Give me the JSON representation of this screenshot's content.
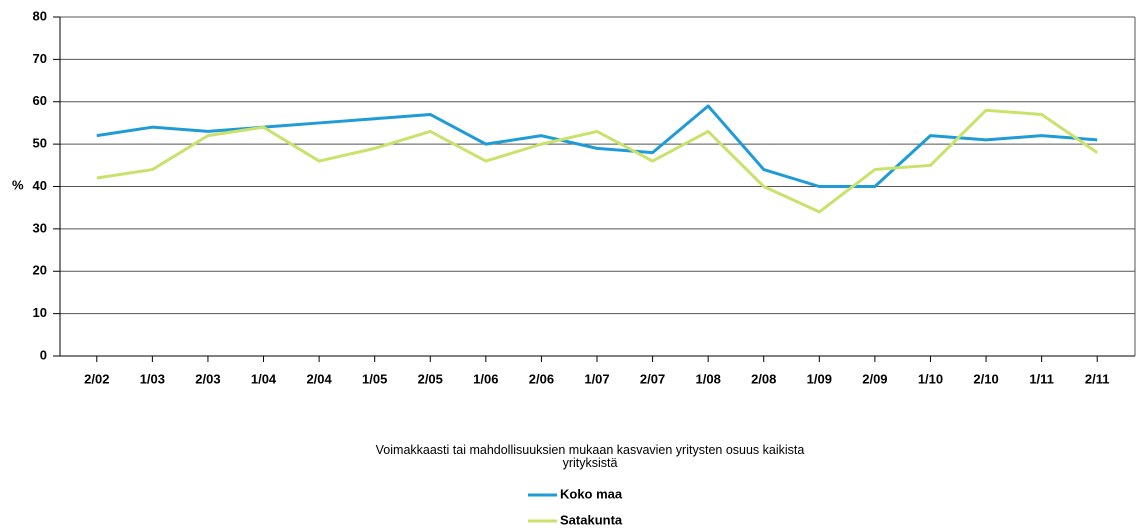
{
  "chart_data": {
    "type": "line",
    "title": "Voimakkaasti tai mahdollisuuksien mukaan kasvavien yritysten osuus kaikista yrityksistä",
    "y_label": "%",
    "categories": [
      "2/02",
      "1/03",
      "2/03",
      "1/04",
      "2/04",
      "1/05",
      "2/05",
      "1/06",
      "2/06",
      "1/07",
      "2/07",
      "1/08",
      "2/08",
      "1/09",
      "2/09",
      "1/10",
      "2/10",
      "1/11",
      "2/11"
    ],
    "series": [
      {
        "name": "Koko maa",
        "color": "#1f9bd7",
        "values": [
          52,
          54,
          53,
          54,
          55,
          56,
          57,
          50,
          52,
          49,
          48,
          59,
          44,
          40,
          40,
          52,
          51,
          52,
          51
        ]
      },
      {
        "name": "Satakunta",
        "color": "#c9e26b",
        "values": [
          42,
          44,
          52,
          54,
          46,
          49,
          53,
          46,
          50,
          53,
          46,
          53,
          40,
          34,
          44,
          45,
          58,
          57,
          48
        ]
      }
    ],
    "ylim": [
      0,
      80
    ],
    "yticks": [
      0,
      10,
      20,
      30,
      40,
      50,
      60,
      70,
      80
    ],
    "grid": true
  }
}
